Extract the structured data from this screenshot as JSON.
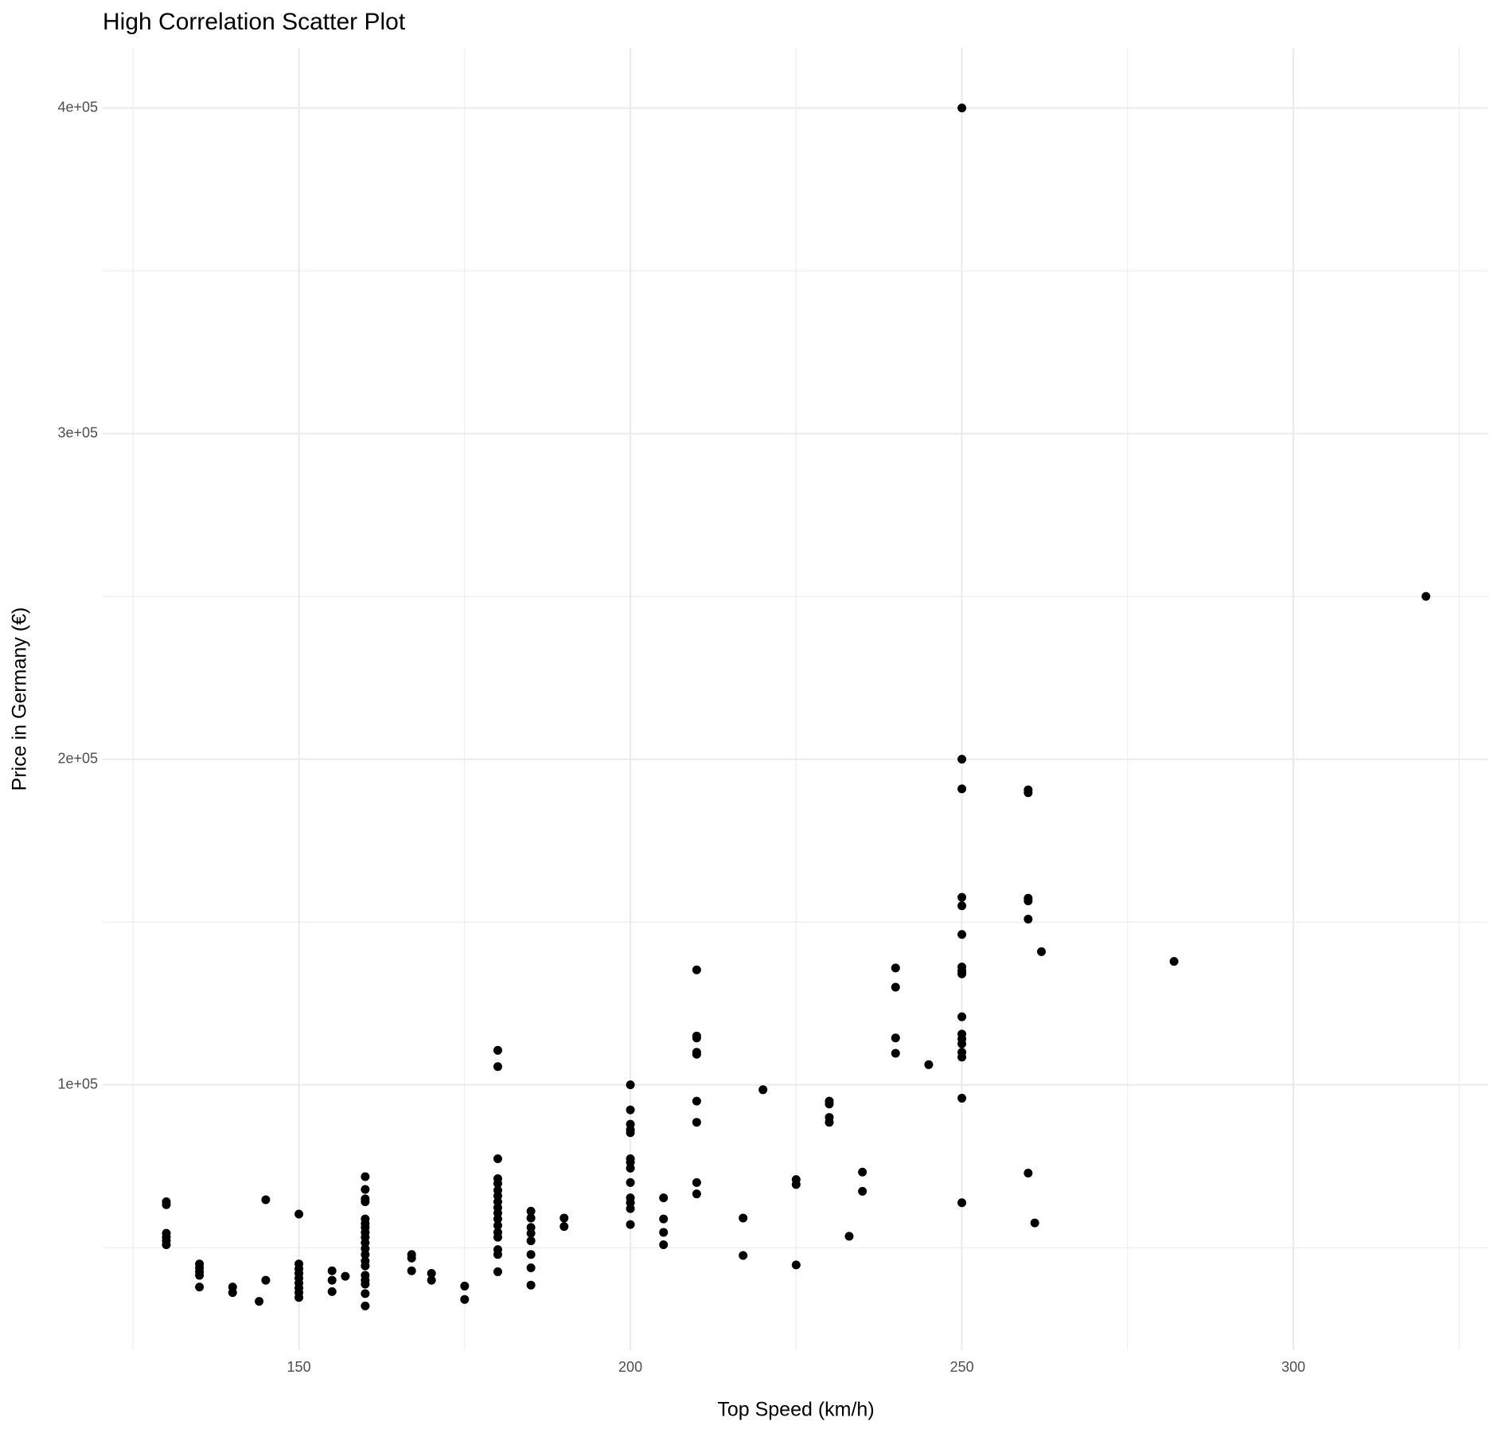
{
  "chart_data": {
    "type": "scatter",
    "title": "High Correlation Scatter Plot",
    "x_label": "Top Speed (km/h)",
    "y_label": "Price in Germany (€)",
    "color": "#000000",
    "grid": true,
    "xlim": [
      120.4,
      329.4
    ],
    "ylim": [
      18500,
      418500
    ],
    "xticks": [
      150,
      200,
      250,
      300
    ],
    "yticks": [
      {
        "value": 100000,
        "label": "1e+05"
      },
      {
        "value": 200000,
        "label": "2e+05"
      },
      {
        "value": 300000,
        "label": "3e+05"
      },
      {
        "value": 400000,
        "label": "4e+05"
      }
    ],
    "xminor": [
      125,
      175,
      225,
      275,
      325
    ],
    "yminor": [
      50000,
      150000,
      250000,
      350000
    ],
    "x": [
      130,
      130,
      130,
      130,
      130,
      130,
      135,
      135,
      135,
      135,
      135,
      140,
      140,
      144,
      145,
      145,
      150,
      150,
      150,
      150,
      150,
      150,
      150,
      150,
      150,
      155,
      155,
      155,
      157,
      160,
      160,
      160,
      160,
      160,
      160,
      160,
      160,
      160,
      160,
      160,
      160,
      160,
      160,
      160,
      160,
      160,
      160,
      160,
      167,
      167,
      167,
      170,
      170,
      175,
      175,
      180,
      180,
      180,
      180,
      180,
      180,
      180,
      180,
      180,
      180,
      180,
      180,
      180,
      180,
      180,
      180,
      180,
      185,
      185,
      185,
      185,
      185,
      185,
      185,
      185,
      190,
      190,
      200,
      200,
      200,
      200,
      200,
      200,
      200,
      200,
      200,
      200,
      200,
      200,
      200,
      205,
      205,
      205,
      205,
      210,
      210,
      210,
      210,
      210,
      210,
      210,
      210,
      210,
      217,
      217,
      220,
      225,
      225,
      225,
      230,
      230,
      230,
      230,
      233,
      235,
      235,
      240,
      240,
      240,
      240,
      245,
      250,
      250,
      250,
      250,
      250,
      250,
      250,
      250,
      250,
      250,
      250,
      250,
      250,
      250,
      250,
      250,
      250,
      260,
      260,
      260,
      260,
      260,
      260,
      261,
      262,
      282,
      320
    ],
    "values": [
      64100,
      63200,
      54400,
      53200,
      52100,
      50900,
      45000,
      43800,
      42600,
      41500,
      37900,
      37900,
      36200,
      33500,
      64700,
      40000,
      60300,
      45000,
      43500,
      42100,
      40600,
      39100,
      37600,
      36200,
      34700,
      42900,
      40000,
      36500,
      41200,
      71800,
      67900,
      65000,
      64100,
      58800,
      57400,
      56200,
      54700,
      53200,
      51500,
      49700,
      47900,
      45900,
      44400,
      41500,
      40000,
      38800,
      35900,
      32100,
      47900,
      46800,
      42900,
      42100,
      40000,
      38200,
      34100,
      110600,
      105600,
      77300,
      71200,
      69700,
      67600,
      65900,
      64100,
      62300,
      60600,
      58800,
      56800,
      54700,
      53200,
      49400,
      47900,
      42600,
      61200,
      59100,
      56200,
      54400,
      52100,
      47900,
      43800,
      38500,
      59100,
      56500,
      100000,
      92300,
      87900,
      86200,
      85300,
      77300,
      76200,
      74400,
      70000,
      65300,
      63800,
      62000,
      57100,
      65300,
      58800,
      54700,
      50900,
      135300,
      115000,
      114400,
      110000,
      109400,
      95000,
      88500,
      70000,
      66500,
      59100,
      47600,
      98500,
      70900,
      69400,
      44700,
      95000,
      94100,
      90000,
      88500,
      53500,
      73200,
      67300,
      135900,
      130000,
      114400,
      109700,
      106200,
      400000,
      200000,
      190900,
      157600,
      155000,
      146200,
      136200,
      135000,
      134100,
      120900,
      115600,
      114100,
      112600,
      110000,
      108500,
      95900,
      63800,
      190600,
      189700,
      157300,
      156500,
      150900,
      72900,
      57600,
      140900,
      137900,
      250000
    ]
  }
}
